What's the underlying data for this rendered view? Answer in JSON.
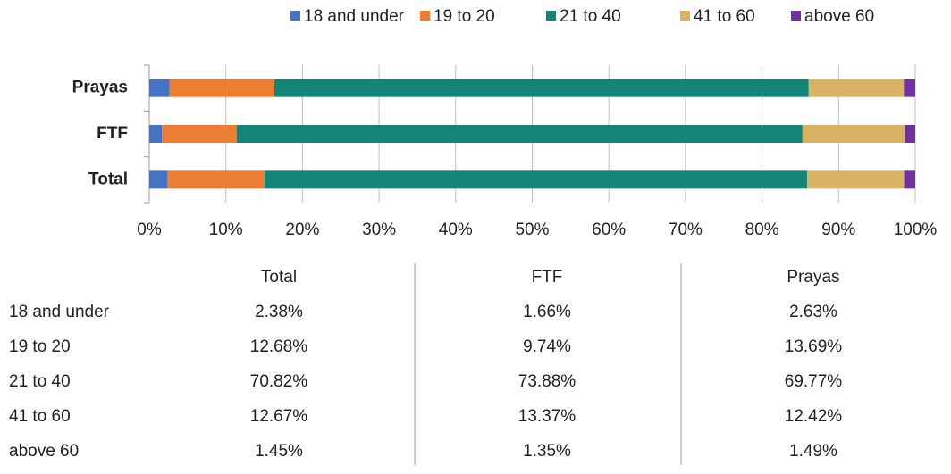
{
  "chart_data": {
    "type": "stacked-bar-horizontal",
    "categories": [
      "Total",
      "FTF",
      "Prayas"
    ],
    "series": [
      {
        "name": "18 and under",
        "color": "#4472c4",
        "values": [
          2.38,
          1.66,
          2.63
        ],
        "value_labels": [
          "2.38%",
          "1.66%",
          "2.63%"
        ]
      },
      {
        "name": "19 to 20",
        "color": "#ed7d31",
        "values": [
          12.68,
          9.74,
          13.69
        ],
        "value_labels": [
          "12.68%",
          "9.74%",
          "13.69%"
        ]
      },
      {
        "name": "21 to 40",
        "color": "#138577",
        "values": [
          70.82,
          73.88,
          69.77
        ],
        "value_labels": [
          "70.82%",
          "73.88%",
          "69.77%"
        ]
      },
      {
        "name": "41 to 60",
        "color": "#d9b263",
        "values": [
          12.67,
          13.37,
          12.42
        ],
        "value_labels": [
          "12.67%",
          "13.37%",
          "12.42%"
        ]
      },
      {
        "name": "above 60",
        "color": "#7030a0",
        "values": [
          1.45,
          1.35,
          1.49
        ],
        "value_labels": [
          "1.45%",
          "1.35%",
          "1.49%"
        ]
      }
    ],
    "xlim": [
      0,
      100
    ],
    "xticks": [
      {
        "value": 0,
        "label": "0%"
      },
      {
        "value": 10,
        "label": "10%"
      },
      {
        "value": 20,
        "label": "20%"
      },
      {
        "value": 30,
        "label": "30%"
      },
      {
        "value": 40,
        "label": "40%"
      },
      {
        "value": 50,
        "label": "50%"
      },
      {
        "value": 60,
        "label": "60%"
      },
      {
        "value": 70,
        "label": "70%"
      },
      {
        "value": 80,
        "label": "80%"
      },
      {
        "value": 90,
        "label": "90%"
      },
      {
        "value": 100,
        "label": "100%"
      }
    ],
    "grid": true,
    "legend": "top"
  }
}
